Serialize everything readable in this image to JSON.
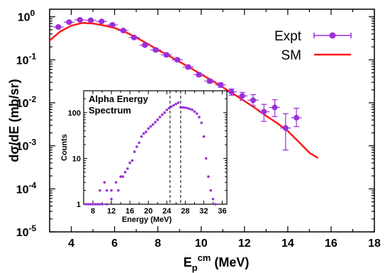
{
  "chart_data": [
    {
      "type": "scatter",
      "title": "",
      "ylabel_parts": [
        "d",
        "σ",
        "/dE (mb/sr)"
      ],
      "xlabel_parts": {
        "base": "E",
        "sub": "p",
        "sup": "cm",
        "unit": " (MeV)"
      },
      "xlim": [
        3,
        18
      ],
      "ylim": [
        1e-05,
        1.5
      ],
      "yscale": "log",
      "x_ticks": [
        4,
        6,
        8,
        10,
        12,
        14,
        16,
        18
      ],
      "y_ticks": [
        {
          "value": 1,
          "base": "10",
          "exp": "0"
        },
        {
          "value": 0.1,
          "base": "10",
          "exp": "-1"
        },
        {
          "value": 0.01,
          "base": "10",
          "exp": "-2"
        },
        {
          "value": 0.001,
          "base": "10",
          "exp": "-3"
        },
        {
          "value": 0.0001,
          "base": "10",
          "exp": "-4"
        },
        {
          "value": 1e-05,
          "base": "10",
          "exp": "-5"
        }
      ],
      "legend_position": "top-right",
      "series": [
        {
          "name": "Expt",
          "kind": "points-with-errorbars",
          "color": "#9b30d9",
          "x": [
            3.4,
            3.9,
            4.4,
            4.9,
            5.4,
            5.9,
            6.4,
            6.9,
            7.4,
            7.9,
            8.4,
            8.9,
            9.4,
            9.9,
            10.4,
            10.9,
            11.4,
            11.9,
            12.4,
            12.9,
            13.4,
            13.9,
            14.4
          ],
          "y": [
            0.58,
            0.75,
            0.85,
            0.83,
            0.78,
            0.65,
            0.48,
            0.33,
            0.22,
            0.17,
            0.13,
            0.1,
            0.068,
            0.045,
            0.032,
            0.026,
            0.018,
            0.0145,
            0.0115,
            0.0062,
            0.0078,
            0.0026,
            0.0045
          ],
          "yerr_low": [
            0.04,
            0.04,
            0.04,
            0.04,
            0.04,
            0.04,
            0.03,
            0.02,
            0.015,
            0.012,
            0.01,
            0.008,
            0.006,
            0.004,
            0.003,
            0.003,
            0.003,
            0.003,
            0.003,
            0.0025,
            0.003,
            0.0018,
            0.0017
          ],
          "yerr_high": [
            0.04,
            0.04,
            0.04,
            0.04,
            0.04,
            0.04,
            0.03,
            0.02,
            0.015,
            0.012,
            0.01,
            0.008,
            0.006,
            0.004,
            0.003,
            0.003,
            0.003,
            0.003,
            0.004,
            0.003,
            0.004,
            0.003,
            0.003
          ],
          "xerr": [
            0.25,
            0.25,
            0.25,
            0.25,
            0.25,
            0.25,
            0.25,
            0.25,
            0.25,
            0.25,
            0.25,
            0.25,
            0.25,
            0.25,
            0.25,
            0.25,
            0.25,
            0.25,
            0.25,
            0.25,
            0.25,
            0.25,
            0.25
          ]
        },
        {
          "name": "SM",
          "kind": "line",
          "color": "#ff1a1a",
          "x": [
            3,
            3.5,
            4,
            4.5,
            5,
            5.5,
            6,
            6.5,
            7,
            7.5,
            8,
            8.5,
            9,
            9.5,
            10,
            10.5,
            11,
            11.5,
            12,
            12.5,
            13,
            13.5,
            14,
            14.5,
            15,
            15.4
          ],
          "y": [
            0.28,
            0.46,
            0.62,
            0.72,
            0.7,
            0.63,
            0.55,
            0.44,
            0.33,
            0.24,
            0.17,
            0.125,
            0.09,
            0.065,
            0.046,
            0.033,
            0.023,
            0.016,
            0.011,
            0.0075,
            0.005,
            0.0034,
            0.0022,
            0.00125,
            0.00069,
            0.00052
          ]
        }
      ]
    },
    {
      "type": "scatter",
      "title_lines": [
        "Alpha Energy",
        "Spectrum"
      ],
      "xlabel": "Energy (MeV)",
      "ylabel": "Counts",
      "xlim": [
        6,
        37
      ],
      "ylim": [
        1,
        300
      ],
      "yscale": "log",
      "x_ticks": [
        8,
        12,
        16,
        20,
        24,
        28,
        32,
        36
      ],
      "y_ticks": [
        1,
        10,
        100
      ],
      "vlines": [
        24.7,
        27.0
      ],
      "series": [
        {
          "name": "",
          "color": "#9b30d9",
          "x": [
            6.5,
            7.0,
            7.5,
            8.0,
            8.5,
            9.0,
            9.5,
            10.0,
            11.0,
            12.0,
            13.0,
            13.5,
            14.0,
            14.5,
            15.0,
            15.5,
            16.0,
            16.5,
            17.0,
            17.5,
            18.0,
            18.5,
            19.0,
            19.5,
            20.0,
            20.5,
            21.0,
            21.5,
            22.0,
            22.5,
            23.0,
            23.5,
            24.0,
            24.5,
            25.0,
            25.5,
            26.0,
            26.5,
            27.0,
            27.5,
            28.0,
            28.5,
            29.0,
            29.5,
            30.0,
            30.5,
            31.0,
            31.5,
            32.0,
            32.5,
            33.0,
            33.5,
            34.0,
            34.5,
            9.5,
            10.5,
            11.0,
            12.0
          ],
          "y": [
            1,
            1,
            1,
            1,
            1,
            1,
            1,
            1,
            1,
            1.3,
            3,
            2,
            4,
            4,
            5,
            6,
            8,
            9,
            14,
            18,
            22,
            30,
            35,
            38,
            45,
            50,
            55,
            62,
            70,
            80,
            90,
            100,
            115,
            125,
            135,
            145,
            155,
            165,
            130,
            130,
            128,
            125,
            120,
            115,
            105,
            95,
            80,
            60,
            30,
            10,
            4,
            2,
            1.3,
            1,
            2,
            3,
            2,
            2
          ]
        }
      ]
    }
  ]
}
